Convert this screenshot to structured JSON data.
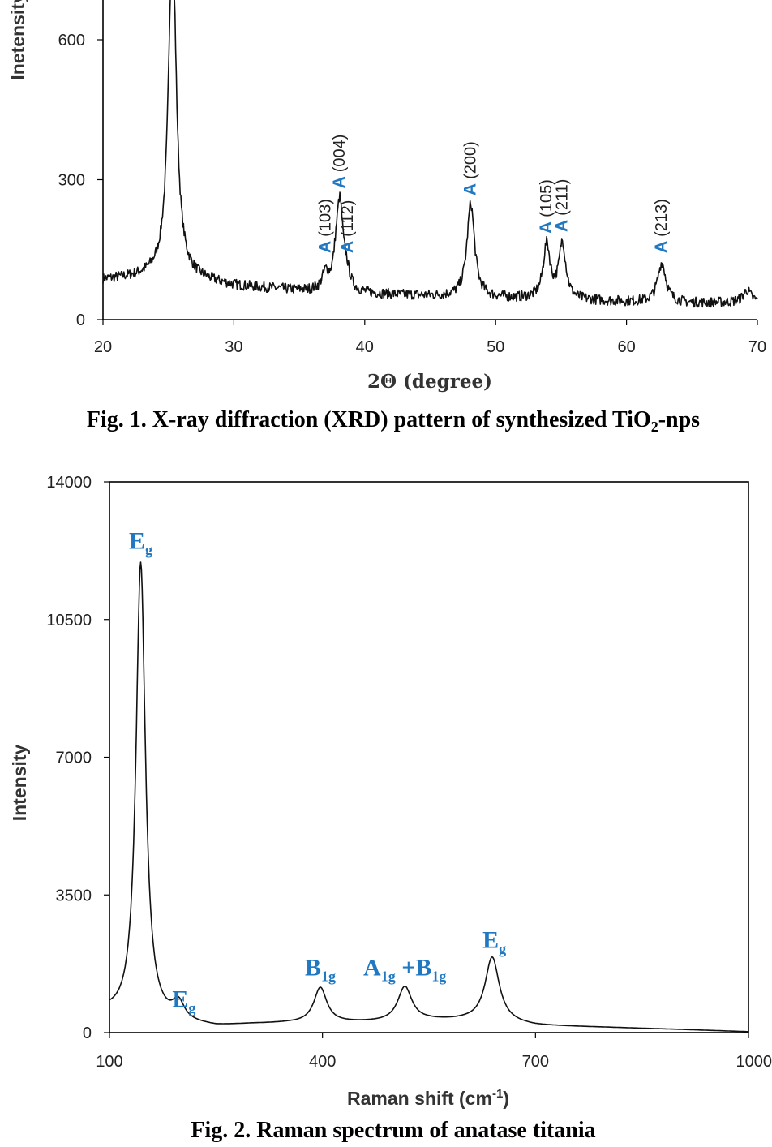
{
  "figures": [
    {
      "caption_main": "Fig. 1. X-ray diffraction (XRD) pattern of synthesized TiO",
      "caption_sub": "2",
      "caption_tail": "-nps"
    },
    {
      "caption_main": "Fig. 2. Raman spectrum of anatase titania"
    }
  ],
  "chart_data": [
    {
      "type": "line",
      "title": "",
      "xlabel": "2Θ (degree)",
      "ylabel": "Inetensity",
      "xlim": [
        20,
        70
      ],
      "ylim": [
        0,
        700
      ],
      "xticks": [
        "20",
        "30",
        "40",
        "50",
        "60",
        "70"
      ],
      "yticks": [
        "0",
        "300",
        "600"
      ],
      "grid": false,
      "baseline": [
        [
          20,
          85
        ],
        [
          25,
          95
        ],
        [
          30,
          72
        ],
        [
          35,
          62
        ],
        [
          40,
          55
        ],
        [
          45,
          50
        ],
        [
          50,
          46
        ],
        [
          55,
          42
        ],
        [
          60,
          38
        ],
        [
          65,
          35
        ],
        [
          70,
          38
        ]
      ],
      "peaks": [
        {
          "x": 25.3,
          "y": 740,
          "width": 0.35
        },
        {
          "x": 37.0,
          "y": 35,
          "width": 0.3
        },
        {
          "x": 37.8,
          "y": 45,
          "width": 0.25
        },
        {
          "x": 38.1,
          "y": 175,
          "width": 0.28
        },
        {
          "x": 38.6,
          "y": 35,
          "width": 0.3
        },
        {
          "x": 48.1,
          "y": 200,
          "width": 0.35
        },
        {
          "x": 53.9,
          "y": 115,
          "width": 0.32
        },
        {
          "x": 55.1,
          "y": 120,
          "width": 0.32
        },
        {
          "x": 62.7,
          "y": 85,
          "width": 0.38
        },
        {
          "x": 69.2,
          "y": 25,
          "width": 0.35
        }
      ],
      "annotations": [
        {
          "letter": "A",
          "hkl": "(103)",
          "x": 37.0
        },
        {
          "letter": "A",
          "hkl": "(004)",
          "x": 38.1
        },
        {
          "letter": "A",
          "hkl": "(112)",
          "x": 38.7
        },
        {
          "letter": "A",
          "hkl": "(200)",
          "x": 48.1
        },
        {
          "letter": "A",
          "hkl": "(105)",
          "x": 53.9
        },
        {
          "letter": "A",
          "hkl": "(211)",
          "x": 55.1
        },
        {
          "letter": "A",
          "hkl": "(213)",
          "x": 62.7
        }
      ]
    },
    {
      "type": "line",
      "title": "",
      "xlabel": "Raman shift (cm",
      "xlabel_sup": "-1",
      "xlabel_tail": ")",
      "ylabel": "Intensity",
      "xlim": [
        100,
        1000
      ],
      "ylim": [
        0,
        14000
      ],
      "xticks": [
        "100",
        "400",
        "700",
        "1000"
      ],
      "yticks": [
        "0",
        "3500",
        "7000",
        "10500",
        "14000"
      ],
      "grid": false,
      "baseline": [
        [
          100,
          450
        ],
        [
          130,
          250
        ],
        [
          200,
          200
        ],
        [
          250,
          140
        ],
        [
          300,
          200
        ],
        [
          350,
          230
        ],
        [
          400,
          230
        ],
        [
          450,
          250
        ],
        [
          500,
          260
        ],
        [
          550,
          300
        ],
        [
          600,
          300
        ],
        [
          650,
          250
        ],
        [
          700,
          170
        ],
        [
          800,
          130
        ],
        [
          900,
          80
        ],
        [
          1000,
          20
        ]
      ],
      "peaks": [
        {
          "x": 144,
          "y": 11700,
          "width": 8
        },
        {
          "x": 197,
          "y": 450,
          "width": 10
        },
        {
          "x": 397,
          "y": 900,
          "width": 11
        },
        {
          "x": 516,
          "y": 880,
          "width": 12
        },
        {
          "x": 639,
          "y": 1650,
          "width": 12
        }
      ],
      "annotations": [
        {
          "main": "E",
          "sub": "g",
          "x": 144,
          "y": 12300
        },
        {
          "main": "E",
          "sub": "g",
          "x": 205,
          "y": 650
        },
        {
          "main": "B",
          "sub": "1g",
          "x": 397,
          "y": 1450
        },
        {
          "main": "A",
          "sub": "1g",
          "tail": " +B",
          "sub2": "1g",
          "x": 516,
          "y": 1450
        },
        {
          "main": "E",
          "sub": "g",
          "x": 642,
          "y": 2150
        }
      ]
    }
  ]
}
